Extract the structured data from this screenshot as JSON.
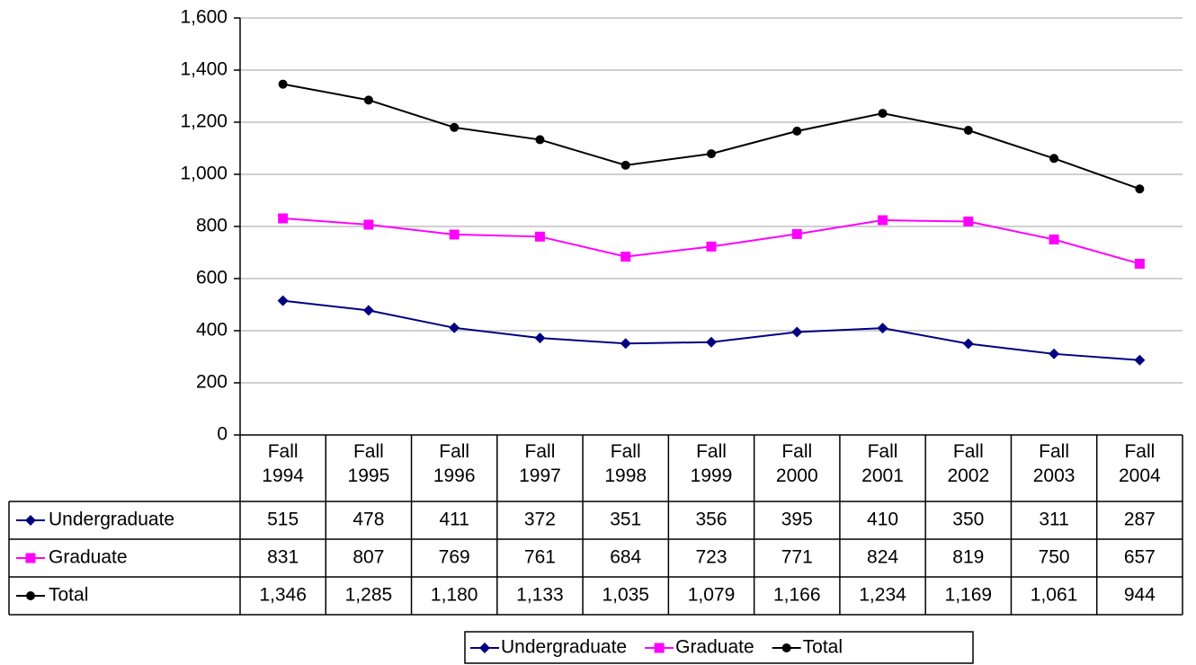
{
  "chart_data": {
    "type": "line",
    "categories": [
      "Fall 1994",
      "Fall 1995",
      "Fall 1996",
      "Fall 1997",
      "Fall 1998",
      "Fall 1999",
      "Fall 2000",
      "Fall 2001",
      "Fall 2002",
      "Fall 2003",
      "Fall 2004"
    ],
    "series": [
      {
        "name": "Undergraduate",
        "color": "#000080",
        "marker": "diamond",
        "values": [
          515,
          478,
          411,
          372,
          351,
          356,
          395,
          410,
          350,
          311,
          287
        ]
      },
      {
        "name": "Graduate",
        "color": "#ff00ff",
        "marker": "square",
        "values": [
          831,
          807,
          769,
          761,
          684,
          723,
          771,
          824,
          819,
          750,
          657
        ]
      },
      {
        "name": "Total",
        "color": "#000000",
        "marker": "circle",
        "values": [
          1346,
          1285,
          1180,
          1133,
          1035,
          1079,
          1166,
          1234,
          1169,
          1061,
          944
        ],
        "value_labels": [
          "1,346",
          "1,285",
          "1,180",
          "1,133",
          "1,035",
          "1,079",
          "1,166",
          "1,234",
          "1,169",
          "1,061",
          "944"
        ]
      }
    ],
    "ylim": [
      0,
      1600
    ],
    "yticks": [
      0,
      200,
      400,
      600,
      800,
      {
        "value": 1000,
        "label": "1,000"
      },
      {
        "value": 1200,
        "label": "1,200"
      },
      {
        "value": 1400,
        "label": "1,400"
      },
      {
        "value": 1600,
        "label": "1,600"
      }
    ],
    "grid": true,
    "legend": "bottom",
    "data_table": true
  }
}
